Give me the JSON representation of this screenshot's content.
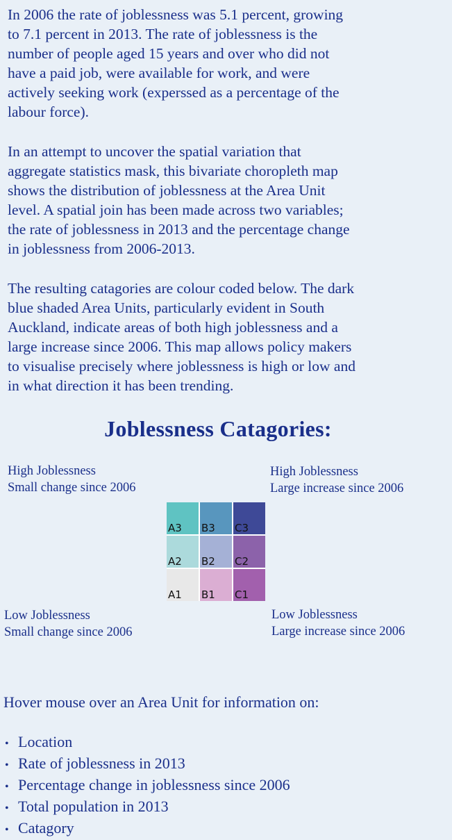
{
  "intro": {
    "paragraph_1": "In 2006 the rate of joblessness was 5.1 percent, growing\nto 7.1 percent in 2013. The rate of joblessness is the\nnumber of people aged 15 years and over who did not\nhave a paid job, were available for work, and were\nactively seeking work (experssed as a percentage of the\nlabour force).",
    "paragraph_2": "In an attempt to uncover the spatial variation that\naggregate statistics mask, this bivariate choropleth map\nshows the distribution of joblessness at the Area Unit\nlevel. A spatial join has been made across two variables;\nthe rate of joblessness in 2013 and the percentage change\nin joblessness from 2006-2013.",
    "paragraph_3": "The resulting catagories are colour coded below. The dark\nblue shaded Area Units, particularly evident in South\nAuckland, indicate areas of both high joblessness and a\nlarge increase since 2006. This map allows policy makers\nto visualise precisely where joblessness is high or low and\nin what direction it has been trending."
  },
  "legend": {
    "title": "Joblessness Catagories:",
    "corners": {
      "top_left": {
        "line1": "High Joblessness",
        "line2": "Small change since 2006"
      },
      "top_right": {
        "line1": "High Joblessness",
        "line2": "Large increase since 2006"
      },
      "bottom_left": {
        "line1": "Low Joblessness",
        "line2": "Small change since 2006"
      },
      "bottom_right": {
        "line1": "Low Joblessness",
        "line2": "Large increase since 2006"
      }
    },
    "cells": [
      {
        "label": "A3",
        "color": "#5fc3c2"
      },
      {
        "label": "B3",
        "color": "#5896be"
      },
      {
        "label": "C3",
        "color": "#3e4997"
      },
      {
        "label": "A2",
        "color": "#acdadc"
      },
      {
        "label": "B2",
        "color": "#a5b1d6"
      },
      {
        "label": "C2",
        "color": "#8c62aa"
      },
      {
        "label": "A1",
        "color": "#e8e8e8"
      },
      {
        "label": "B1",
        "color": "#dbaed3"
      },
      {
        "label": "C1",
        "color": "#a260ad"
      }
    ]
  },
  "hover_info": {
    "intro": "Hover mouse over an Area Unit for information on:",
    "bullet_symbol": "•",
    "items": [
      "Location",
      "Rate of joblessness in 2013",
      "Percentage change in joblessness since 2006",
      "Total population in 2013",
      "Catagory"
    ]
  },
  "colors": {
    "background": "#e9f0f7",
    "text": "#1a2f8a"
  }
}
